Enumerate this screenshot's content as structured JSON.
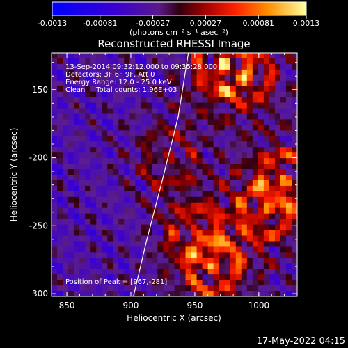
{
  "chart_data": {
    "type": "heatmap",
    "title": "Reconstructed RHESSI Image",
    "xlabel": "Heliocentric X (arcsec)",
    "ylabel": "Heliocentric Y (arcsec)",
    "xlim": [
      838,
      1030
    ],
    "ylim": [
      -302,
      -123
    ],
    "xticks": [
      850,
      900,
      950,
      1000
    ],
    "yticks": [
      -150,
      -200,
      -250,
      -300
    ],
    "colorbar": {
      "range": [
        -0.0013,
        0.0013
      ],
      "ticks": [
        "-0.0013",
        "-0.00081",
        "-0.00027",
        "0.00027",
        "0.00081",
        "0.0013"
      ],
      "unit_label": "(photons cm⁻² s⁻¹ asec⁻²)"
    },
    "annotations": [
      "13-Sep-2014 09:32:12.000 to 09:35:28.000",
      "Detectors: 3F 6F 9F, Att 0",
      "Energy Range: 12.0 - 25.0 keV",
      "Clean     Total counts: 1.96E+03"
    ],
    "peak_label": "Position of Peak = [967,-281]",
    "peak": [
      967,
      -281
    ],
    "timestamp": "17-May-2022 04:15",
    "bright_sources": [
      {
        "x": 972,
        "y": -133,
        "value": 0.0012
      },
      {
        "x": 1020,
        "y": -216,
        "value": 0.0012
      },
      {
        "x": 965,
        "y": -280,
        "value": 0.0013
      },
      {
        "x": 930,
        "y": -200,
        "value": 0.0008
      },
      {
        "x": 990,
        "y": -140,
        "value": 0.0009
      },
      {
        "x": 1005,
        "y": -240,
        "value": 0.001
      },
      {
        "x": 950,
        "y": -255,
        "value": 0.0009
      }
    ],
    "limb_curve": [
      [
        945,
        -123
      ],
      [
        937,
        -170
      ],
      [
        925,
        -215
      ],
      [
        912,
        -262
      ],
      [
        902,
        -302
      ]
    ]
  }
}
